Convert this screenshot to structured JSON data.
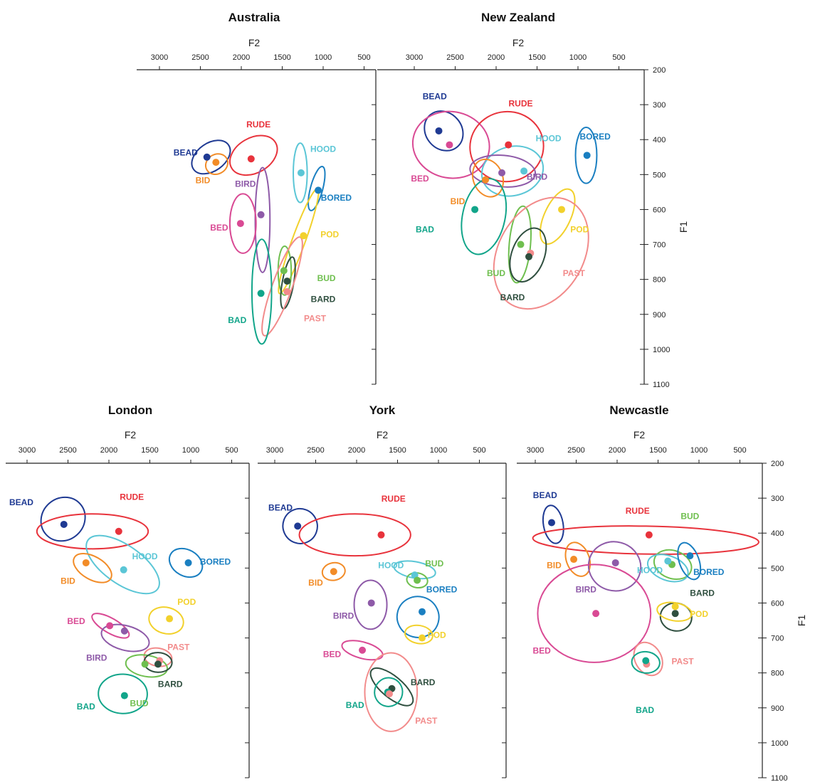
{
  "chart_data": [
    {
      "type": "scatter",
      "title": "Australia",
      "xlabel": "F2",
      "ylabel": "",
      "xlim": [
        3300,
        0
      ],
      "ylim": [
        200,
        1100
      ],
      "x_ticks": [
        "3000",
        "2500",
        "2000",
        "1500",
        "1000",
        "500"
      ],
      "y_ticks": [],
      "vowels": [
        {
          "label": "BEAD",
          "color": "#1f3a93",
          "f2": 2420,
          "f1": 450,
          "ell_f2": 2370,
          "ell_f1": 450,
          "rf2": 260,
          "rf1": 40,
          "rot": -35,
          "label_f2": 2680,
          "label_f1": 445
        },
        {
          "label": "BID",
          "color": "#f28c28",
          "f2": 2310,
          "f1": 465,
          "ell_f2": 2300,
          "ell_f1": 470,
          "rf2": 140,
          "rf1": 28,
          "rot": -30,
          "label_f2": 2470,
          "label_f1": 525
        },
        {
          "label": "RUDE",
          "color": "#e8333c",
          "f2": 1880,
          "f1": 455,
          "ell_f2": 1850,
          "ell_f1": 445,
          "rf2": 310,
          "rf1": 50,
          "rot": -30,
          "label_f2": 1790,
          "label_f1": 365
        },
        {
          "label": "BIRD",
          "color": "#8e5aa8",
          "f2": 1760,
          "f1": 615,
          "ell_f2": 1740,
          "ell_f1": 630,
          "rf2": 90,
          "rf1": 150,
          "rot": 0,
          "label_f2": 1950,
          "label_f1": 535
        },
        {
          "label": "BED",
          "color": "#d94a94",
          "f2": 2010,
          "f1": 640,
          "ell_f2": 1980,
          "ell_f1": 640,
          "rf2": 160,
          "rf1": 85,
          "rot": 0,
          "label_f2": 2270,
          "label_f1": 660
        },
        {
          "label": "HOOD",
          "color": "#5bc6d6",
          "f2": 1270,
          "f1": 495,
          "ell_f2": 1280,
          "ell_f1": 495,
          "rf2": 85,
          "rf1": 85,
          "rot": 0,
          "label_f2": 1000,
          "label_f1": 435
        },
        {
          "label": "BORED",
          "color": "#1a7fc1",
          "f2": 1060,
          "f1": 545,
          "ell_f2": 1080,
          "ell_f1": 540,
          "rf2": 75,
          "rf1": 65,
          "rot": 15,
          "label_f2": 840,
          "label_f1": 575
        },
        {
          "label": "POD",
          "color": "#f2d12c",
          "f2": 1240,
          "f1": 675,
          "ell_f2": 1300,
          "ell_f1": 690,
          "rf2": 80,
          "rf1": 160,
          "rot": 20,
          "label_f2": 920,
          "label_f1": 680
        },
        {
          "label": "BUD",
          "color": "#6fbf4f",
          "f2": 1480,
          "f1": 775,
          "ell_f2": 1470,
          "ell_f1": 775,
          "rf2": 80,
          "rf1": 70,
          "rot": 0,
          "label_f2": 960,
          "label_f1": 805
        },
        {
          "label": "BARD",
          "color": "#2f4f3f",
          "f2": 1440,
          "f1": 805,
          "ell_f2": 1430,
          "ell_f1": 810,
          "rf2": 70,
          "rf1": 75,
          "rot": 10,
          "label_f2": 1000,
          "label_f1": 865
        },
        {
          "label": "PAST",
          "color": "#f28b8b",
          "f2": 1440,
          "f1": 835,
          "ell_f2": 1500,
          "ell_f1": 820,
          "rf2": 120,
          "rf1": 150,
          "rot": 20,
          "label_f2": 1100,
          "label_f1": 920
        },
        {
          "label": "BAD",
          "color": "#12a58a",
          "f2": 1760,
          "f1": 840,
          "ell_f2": 1750,
          "ell_f1": 835,
          "rf2": 120,
          "rf1": 150,
          "rot": 0,
          "label_f2": 2050,
          "label_f1": 925
        }
      ]
    },
    {
      "type": "scatter",
      "title": "New Zealand",
      "xlabel": "F2",
      "ylabel": "F1",
      "xlim": [
        3300,
        0
      ],
      "ylim": [
        200,
        1100
      ],
      "x_ticks": [
        "3000",
        "2500",
        "2000",
        "1500",
        "1000",
        "500"
      ],
      "y_ticks": [
        "200",
        "300",
        "400",
        "500",
        "600",
        "700",
        "800",
        "900",
        "1000",
        "1100"
      ],
      "vowels": [
        {
          "label": "BEAD",
          "color": "#1f3a93",
          "f2": 2700,
          "f1": 375,
          "ell_f2": 2640,
          "ell_f1": 375,
          "rf2": 220,
          "rf1": 60,
          "rot": -40,
          "label_f2": 2750,
          "label_f1": 285
        },
        {
          "label": "BED",
          "color": "#d94a94",
          "f2": 2570,
          "f1": 415,
          "ell_f2": 2550,
          "ell_f1": 415,
          "rf2": 470,
          "rf1": 95,
          "rot": 10,
          "label_f2": 2930,
          "label_f1": 520
        },
        {
          "label": "RUDE",
          "color": "#e8333c",
          "f2": 1850,
          "f1": 415,
          "ell_f2": 1870,
          "ell_f1": 420,
          "rf2": 450,
          "rf1": 100,
          "rot": -10,
          "label_f2": 1700,
          "label_f1": 305
        },
        {
          "label": "HOOD",
          "color": "#5bc6d6",
          "f2": 1660,
          "f1": 490,
          "ell_f2": 1800,
          "ell_f1": 490,
          "rf2": 380,
          "rf1": 70,
          "rot": -15,
          "label_f2": 1360,
          "label_f1": 405
        },
        {
          "label": "BORED",
          "color": "#1a7fc1",
          "f2": 890,
          "f1": 445,
          "ell_f2": 900,
          "ell_f1": 445,
          "rf2": 130,
          "rf1": 80,
          "rot": 0,
          "label_f2": 790,
          "label_f1": 400
        },
        {
          "label": "BIRD",
          "color": "#8e5aa8",
          "f2": 1930,
          "f1": 495,
          "ell_f2": 1920,
          "ell_f1": 490,
          "rf2": 400,
          "rf1": 45,
          "rot": 5,
          "label_f2": 1500,
          "label_f1": 515
        },
        {
          "label": "BID",
          "color": "#f28c28",
          "f2": 2130,
          "f1": 515,
          "ell_f2": 2100,
          "ell_f1": 510,
          "rf2": 180,
          "rf1": 55,
          "rot": -20,
          "label_f2": 2470,
          "label_f1": 585
        },
        {
          "label": "BAD",
          "color": "#12a58a",
          "f2": 2260,
          "f1": 600,
          "ell_f2": 2150,
          "ell_f1": 620,
          "rf2": 260,
          "rf1": 110,
          "rot": 12,
          "label_f2": 2870,
          "label_f1": 665
        },
        {
          "label": "POD",
          "color": "#f2d12c",
          "f2": 1200,
          "f1": 600,
          "ell_f2": 1250,
          "ell_f1": 620,
          "rf2": 160,
          "rf1": 85,
          "rot": 25,
          "label_f2": 980,
          "label_f1": 665
        },
        {
          "label": "BUD",
          "color": "#6fbf4f",
          "f2": 1700,
          "f1": 700,
          "ell_f2": 1710,
          "ell_f1": 700,
          "rf2": 130,
          "rf1": 110,
          "rot": 5,
          "label_f2": 2000,
          "label_f1": 790
        },
        {
          "label": "PAST",
          "color": "#f28b8b",
          "f2": 1580,
          "f1": 725,
          "ell_f2": 1450,
          "ell_f1": 725,
          "rf2": 520,
          "rf1": 170,
          "rot": 30,
          "label_f2": 1050,
          "label_f1": 790
        },
        {
          "label": "BARD",
          "color": "#2f4f3f",
          "f2": 1600,
          "f1": 735,
          "ell_f2": 1610,
          "ell_f1": 730,
          "rf2": 200,
          "rf1": 80,
          "rot": 20,
          "label_f2": 1800,
          "label_f1": 860
        }
      ]
    },
    {
      "type": "scatter",
      "title": "London",
      "xlabel": "F2",
      "ylabel": "",
      "xlim": [
        3300,
        0
      ],
      "ylim": [
        200,
        1100
      ],
      "x_ticks": [
        "3000",
        "2500",
        "2000",
        "1500",
        "1000",
        "500"
      ],
      "y_ticks": [],
      "vowels": [
        {
          "label": "BEAD",
          "color": "#1f3a93",
          "f2": 2550,
          "f1": 375,
          "ell_f2": 2560,
          "ell_f1": 360,
          "rf2": 280,
          "rf1": 60,
          "rot": -42,
          "label_f2": 3070,
          "label_f1": 320
        },
        {
          "label": "RUDE",
          "color": "#e8333c",
          "f2": 1880,
          "f1": 395,
          "ell_f2": 2200,
          "ell_f1": 395,
          "rf2": 680,
          "rf1": 50,
          "rot": 0,
          "label_f2": 1720,
          "label_f1": 305
        },
        {
          "label": "HOOD",
          "color": "#5bc6d6",
          "f2": 1820,
          "f1": 505,
          "ell_f2": 1830,
          "ell_f1": 490,
          "rf2": 520,
          "rf1": 55,
          "rot": 35,
          "label_f2": 1560,
          "label_f1": 475
        },
        {
          "label": "BORED",
          "color": "#1a7fc1",
          "f2": 1030,
          "f1": 485,
          "ell_f2": 1060,
          "ell_f1": 485,
          "rf2": 160,
          "rf1": 50,
          "rot": -60,
          "label_f2": 700,
          "label_f1": 490
        },
        {
          "label": "BID",
          "color": "#f28c28",
          "f2": 2280,
          "f1": 485,
          "ell_f2": 2200,
          "ell_f1": 500,
          "rf2": 140,
          "rf1": 60,
          "rot": -60,
          "label_f2": 2500,
          "label_f1": 545
        },
        {
          "label": "POD",
          "color": "#f2d12c",
          "f2": 1260,
          "f1": 645,
          "ell_f2": 1300,
          "ell_f1": 650,
          "rf2": 160,
          "rf1": 50,
          "rot": -75,
          "label_f2": 1050,
          "label_f1": 605
        },
        {
          "label": "BED",
          "color": "#d94a94",
          "f2": 1990,
          "f1": 665,
          "ell_f2": 1980,
          "ell_f1": 665,
          "rf2": 90,
          "rf1": 60,
          "rot": -60,
          "label_f2": 2400,
          "label_f1": 660
        },
        {
          "label": "BIRD",
          "color": "#8e5aa8",
          "f2": 1810,
          "f1": 680,
          "ell_f2": 1800,
          "ell_f1": 700,
          "rf2": 150,
          "rf1": 70,
          "rot": -75,
          "label_f2": 2150,
          "label_f1": 765
        },
        {
          "label": "PAST",
          "color": "#f28b8b",
          "f2": 1380,
          "f1": 765,
          "ell_f2": 1400,
          "ell_f1": 755,
          "rf2": 110,
          "rf1": 40,
          "rot": -80,
          "label_f2": 1150,
          "label_f1": 735
        },
        {
          "label": "BUD",
          "color": "#6fbf4f",
          "f2": 1560,
          "f1": 775,
          "ell_f2": 1540,
          "ell_f1": 780,
          "rf2": 130,
          "rf1": 60,
          "rot": -80,
          "label_f2": 1630,
          "label_f1": 895
        },
        {
          "label": "BARD",
          "color": "#2f4f3f",
          "f2": 1400,
          "f1": 775,
          "ell_f2": 1400,
          "ell_f1": 770,
          "rf2": 120,
          "rf1": 40,
          "rot": -88,
          "label_f2": 1250,
          "label_f1": 840
        },
        {
          "label": "BAD",
          "color": "#12a58a",
          "f2": 1810,
          "f1": 865,
          "ell_f2": 1830,
          "ell_f1": 860,
          "rf2": 240,
          "rf1": 70,
          "rot": -88,
          "label_f2": 2280,
          "label_f1": 905
        }
      ]
    },
    {
      "type": "scatter",
      "title": "York",
      "xlabel": "F2",
      "ylabel": "",
      "xlim": [
        3300,
        0
      ],
      "ylim": [
        200,
        1100
      ],
      "x_ticks": [
        "3000",
        "2500",
        "2000",
        "1500",
        "1000",
        "500"
      ],
      "y_ticks": [],
      "vowels": [
        {
          "label": "BEAD",
          "color": "#1f3a93",
          "f2": 2720,
          "f1": 380,
          "ell_f2": 2690,
          "ell_f1": 380,
          "rf2": 210,
          "rf1": 50,
          "rot": -25,
          "label_f2": 2930,
          "label_f1": 335
        },
        {
          "label": "RUDE",
          "color": "#e8333c",
          "f2": 1700,
          "f1": 405,
          "ell_f2": 2020,
          "ell_f1": 405,
          "rf2": 680,
          "rf1": 60,
          "rot": 0,
          "label_f2": 1550,
          "label_f1": 310
        },
        {
          "label": "BID",
          "color": "#f28c28",
          "f2": 2280,
          "f1": 510,
          "ell_f2": 2280,
          "ell_f1": 510,
          "rf2": 140,
          "rf1": 25,
          "rot": -10,
          "label_f2": 2500,
          "label_f1": 550
        },
        {
          "label": "HOOD",
          "color": "#5bc6d6",
          "f2": 1290,
          "f1": 520,
          "ell_f2": 1290,
          "ell_f1": 505,
          "rf2": 100,
          "rf1": 60,
          "rot": -80,
          "label_f2": 1580,
          "label_f1": 500
        },
        {
          "label": "BUD",
          "color": "#6fbf4f",
          "f2": 1260,
          "f1": 535,
          "ell_f2": 1260,
          "ell_f1": 535,
          "rf2": 90,
          "rf1": 30,
          "rot": -80,
          "label_f2": 1050,
          "label_f1": 495
        },
        {
          "label": "BORED",
          "color": "#1a7fc1",
          "f2": 1200,
          "f1": 625,
          "ell_f2": 1250,
          "ell_f1": 640,
          "rf2": 250,
          "rf1": 60,
          "rot": -75,
          "label_f2": 960,
          "label_f1": 570
        },
        {
          "label": "BIRD",
          "color": "#8e5aa8",
          "f2": 1820,
          "f1": 600,
          "ell_f2": 1830,
          "ell_f1": 605,
          "rf2": 200,
          "rf1": 70,
          "rot": 0,
          "label_f2": 2160,
          "label_f1": 645
        },
        {
          "label": "POD",
          "color": "#f2d12c",
          "f2": 1200,
          "f1": 700,
          "ell_f2": 1240,
          "ell_f1": 690,
          "rf2": 110,
          "rf1": 40,
          "rot": -80,
          "label_f2": 1020,
          "label_f1": 700
        },
        {
          "label": "BED",
          "color": "#d94a94",
          "f2": 1930,
          "f1": 735,
          "ell_f2": 1930,
          "ell_f1": 735,
          "rf2": 100,
          "rf1": 60,
          "rot": -75,
          "label_f2": 2300,
          "label_f1": 755
        },
        {
          "label": "BARD",
          "color": "#2f4f3f",
          "f2": 1570,
          "f1": 845,
          "ell_f2": 1570,
          "ell_f1": 840,
          "rf2": 130,
          "rf1": 75,
          "rot": -50,
          "label_f2": 1190,
          "label_f1": 835
        },
        {
          "label": "BAD",
          "color": "#12a58a",
          "f2": 1620,
          "f1": 855,
          "ell_f2": 1610,
          "ell_f1": 855,
          "rf2": 175,
          "rf1": 40,
          "rot": -80,
          "label_f2": 2020,
          "label_f1": 900
        },
        {
          "label": "PAST",
          "color": "#f28b8b",
          "f2": 1600,
          "f1": 860,
          "ell_f2": 1580,
          "ell_f1": 855,
          "rf2": 480,
          "rf1": 75,
          "rot": -90,
          "label_f2": 1150,
          "label_f1": 945
        }
      ]
    },
    {
      "type": "scatter",
      "title": "Newcastle",
      "xlabel": "F2",
      "ylabel": "F1",
      "xlim": [
        3300,
        0
      ],
      "ylim": [
        200,
        1100
      ],
      "x_ticks": [
        "3000",
        "2500",
        "2000",
        "1500",
        "1000",
        "500"
      ],
      "y_ticks": [
        "200",
        "300",
        "400",
        "500",
        "600",
        "700",
        "800",
        "900",
        "1000",
        "1100"
      ],
      "vowels": [
        {
          "label": "BEAD",
          "color": "#1f3a93",
          "f2": 2800,
          "f1": 370,
          "ell_f2": 2780,
          "ell_f1": 375,
          "rf2": 120,
          "rf1": 55,
          "rot": -10,
          "label_f2": 2880,
          "label_f1": 300
        },
        {
          "label": "RUDE",
          "color": "#e8333c",
          "f2": 1610,
          "f1": 405,
          "ell_f2": 1650,
          "ell_f1": 420,
          "rf2": 1380,
          "rf1": 40,
          "rot": 1,
          "label_f2": 1750,
          "label_f1": 345
        },
        {
          "label": "BUD",
          "color": "#6fbf4f",
          "f2": 1330,
          "f1": 490,
          "ell_f2": 1320,
          "ell_f1": 490,
          "rf2": 170,
          "rf1": 55,
          "rot": -70,
          "label_f2": 1110,
          "label_f1": 360
        },
        {
          "label": "BID",
          "color": "#f28c28",
          "f2": 2530,
          "f1": 475,
          "ell_f2": 2480,
          "ell_f1": 475,
          "rf2": 140,
          "rf1": 50,
          "rot": -20,
          "label_f2": 2770,
          "label_f1": 500
        },
        {
          "label": "BIRD",
          "color": "#8e5aa8",
          "f2": 2020,
          "f1": 485,
          "ell_f2": 2030,
          "ell_f1": 495,
          "rf2": 320,
          "rf1": 70,
          "rot": 15,
          "label_f2": 2380,
          "label_f1": 570
        },
        {
          "label": "HOOD",
          "color": "#5bc6d6",
          "f2": 1380,
          "f1": 480,
          "ell_f2": 1380,
          "ell_f1": 500,
          "rf2": 150,
          "rf1": 60,
          "rot": -70,
          "label_f2": 1600,
          "label_f1": 515
        },
        {
          "label": "BORED",
          "color": "#1a7fc1",
          "f2": 1110,
          "f1": 465,
          "ell_f2": 1120,
          "ell_f1": 480,
          "rf2": 120,
          "rf1": 55,
          "rot": -20,
          "label_f2": 880,
          "label_f1": 520
        },
        {
          "label": "BARD",
          "color": "#2f4f3f",
          "f2": 1290,
          "f1": 630,
          "ell_f2": 1280,
          "ell_f1": 640,
          "rf2": 170,
          "rf1": 45,
          "rot": -80,
          "label_f2": 960,
          "label_f1": 580
        },
        {
          "label": "POD",
          "color": "#f2d12c",
          "f2": 1290,
          "f1": 610,
          "ell_f2": 1300,
          "ell_f1": 625,
          "rf2": 110,
          "rf1": 50,
          "rot": -80,
          "label_f2": 1000,
          "label_f1": 640
        },
        {
          "label": "BED",
          "color": "#d94a94",
          "f2": 2260,
          "f1": 630,
          "ell_f2": 2280,
          "ell_f1": 630,
          "rf2": 690,
          "rf1": 140,
          "rot": 0,
          "label_f2": 2920,
          "label_f1": 745
        },
        {
          "label": "PAST",
          "color": "#f28b8b",
          "f2": 1640,
          "f1": 775,
          "ell_f2": 1620,
          "ell_f1": 760,
          "rf2": 160,
          "rf1": 50,
          "rot": -30,
          "label_f2": 1200,
          "label_f1": 775
        },
        {
          "label": "BAD",
          "color": "#12a58a",
          "f2": 1650,
          "f1": 765,
          "ell_f2": 1650,
          "ell_f1": 770,
          "rf2": 130,
          "rf1": 40,
          "rot": -85,
          "label_f2": 1660,
          "label_f1": 915
        }
      ]
    }
  ]
}
